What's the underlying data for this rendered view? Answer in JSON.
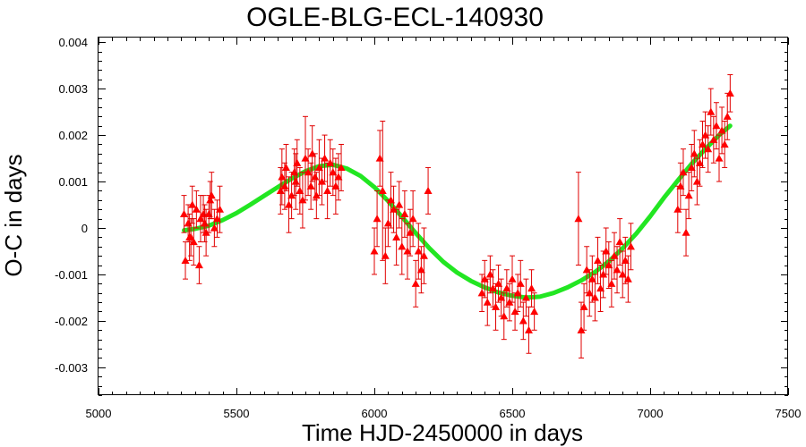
{
  "chart_data": {
    "type": "scatter",
    "title": "OGLE-BLG-ECL-140930",
    "xlabel": "Time HJD-2450000 in days",
    "ylabel": "O-C in days",
    "xlim": [
      5000,
      7500
    ],
    "ylim": [
      -0.0036,
      0.0041
    ],
    "x_ticks": [
      "5000",
      "5500",
      "6000",
      "6500",
      "7000",
      "7500"
    ],
    "y_ticks": [
      "-0.003",
      "-0.002",
      "-0.001",
      "0",
      "0.001",
      "0.002",
      "0.003",
      "0.004"
    ],
    "colors": {
      "points": "#ff0000",
      "error_bars": "#e00000",
      "fit": "#22e622"
    },
    "series": [
      {
        "style": "triangle-markers-with-error-bars",
        "x": [
          5310,
          5315,
          5325,
          5330,
          5335,
          5340,
          5345,
          5355,
          5365,
          5370,
          5380,
          5385,
          5390,
          5400,
          5405,
          5410,
          5420,
          5430,
          5440,
          5660,
          5665,
          5675,
          5680,
          5690,
          5700,
          5710,
          5715,
          5720,
          5730,
          5740,
          5750,
          5760,
          5770,
          5775,
          5785,
          5790,
          5800,
          5810,
          5820,
          5830,
          5840,
          5850,
          5860,
          5870,
          5880,
          6000,
          6010,
          6020,
          6030,
          6040,
          6050,
          6060,
          6070,
          6080,
          6090,
          6100,
          6110,
          6120,
          6130,
          6140,
          6150,
          6160,
          6170,
          6180,
          6195,
          6390,
          6400,
          6410,
          6420,
          6430,
          6440,
          6450,
          6460,
          6470,
          6480,
          6490,
          6500,
          6510,
          6520,
          6530,
          6540,
          6550,
          6560,
          6570,
          6580,
          6740,
          6750,
          6760,
          6770,
          6780,
          6790,
          6800,
          6810,
          6820,
          6830,
          6840,
          6850,
          6860,
          6870,
          6880,
          6890,
          6900,
          6910,
          6920,
          6930,
          7100,
          7110,
          7120,
          7130,
          7140,
          7150,
          7160,
          7170,
          7180,
          7190,
          7200,
          7210,
          7220,
          7230,
          7240,
          7250,
          7260,
          7270,
          7280,
          7290
        ],
        "y": [
          0.0003,
          -0.0007,
          0.0001,
          -0.0002,
          -0.0002,
          0.0005,
          -0.0003,
          0.0004,
          -0.0008,
          0.0002,
          0.0003,
          0.0001,
          -0.0001,
          0.0003,
          0.0006,
          0.0007,
          0.0,
          0.0002,
          0.0004,
          0.0008,
          0.0011,
          0.0009,
          0.0013,
          0.0005,
          0.0007,
          0.0012,
          0.001,
          0.0014,
          0.0008,
          0.0006,
          0.0015,
          0.0012,
          0.0009,
          0.0016,
          0.0011,
          0.0007,
          0.0013,
          0.001,
          0.0015,
          0.0008,
          0.0014,
          0.0012,
          0.0009,
          0.0011,
          0.0013,
          -0.0005,
          0.0002,
          0.0015,
          0.0008,
          -0.0006,
          0.0001,
          0.0006,
          0.0004,
          -0.0002,
          0.0005,
          -0.0004,
          0.0003,
          -0.0005,
          -0.0001,
          0.0002,
          -0.0012,
          -0.0005,
          -0.0009,
          -0.0006,
          0.0008,
          -0.0014,
          -0.0011,
          -0.0016,
          -0.001,
          -0.0013,
          -0.0017,
          -0.0012,
          -0.0015,
          -0.0019,
          -0.0013,
          -0.0016,
          -0.0011,
          -0.0018,
          -0.0014,
          -0.0012,
          -0.002,
          -0.0015,
          -0.0022,
          -0.0013,
          -0.0018,
          0.0002,
          -0.0022,
          -0.0017,
          -0.0009,
          -0.0014,
          -0.0011,
          -0.0015,
          -0.0007,
          -0.0013,
          -0.001,
          -0.0005,
          -0.0008,
          -0.0012,
          -0.0006,
          -0.0009,
          -0.0003,
          -0.001,
          -0.0007,
          -0.0011,
          -0.0004,
          0.0004,
          0.0009,
          0.0012,
          -0.0001,
          0.0007,
          0.0013,
          0.0016,
          0.001,
          0.0014,
          0.0018,
          0.002,
          0.0017,
          0.0025,
          0.0019,
          0.0022,
          0.0015,
          0.0021,
          0.0018,
          0.0024,
          0.0029
        ],
        "err": [
          0.0004,
          0.0004,
          0.0004,
          0.0005,
          0.0004,
          0.0004,
          0.0005,
          0.0004,
          0.0004,
          0.0005,
          0.0004,
          0.0004,
          0.0005,
          0.0004,
          0.0004,
          0.0005,
          0.0004,
          0.0004,
          0.0005,
          0.0005,
          0.0006,
          0.0005,
          0.0005,
          0.0006,
          0.0005,
          0.0005,
          0.0006,
          0.0005,
          0.0005,
          0.0006,
          0.0009,
          0.0005,
          0.0005,
          0.0006,
          0.0005,
          0.0005,
          0.0006,
          0.0005,
          0.0005,
          0.0006,
          0.0005,
          0.0005,
          0.0006,
          0.0005,
          0.0005,
          0.0005,
          0.0006,
          0.0006,
          0.0015,
          0.0006,
          0.0005,
          0.0006,
          0.0005,
          0.0006,
          0.0005,
          0.0006,
          0.0005,
          0.0006,
          0.0005,
          0.0006,
          0.0005,
          0.0006,
          0.0005,
          0.0006,
          0.0005,
          0.0004,
          0.0004,
          0.0005,
          0.0004,
          0.0004,
          0.0005,
          0.0004,
          0.0004,
          0.0005,
          0.0004,
          0.0004,
          0.0005,
          0.0004,
          0.0004,
          0.0005,
          0.0004,
          0.0004,
          0.0005,
          0.0004,
          0.0004,
          0.001,
          0.0006,
          0.0005,
          0.0005,
          0.0005,
          0.0005,
          0.0005,
          0.0005,
          0.0005,
          0.0005,
          0.0005,
          0.0005,
          0.0005,
          0.0005,
          0.0005,
          0.0005,
          0.0005,
          0.0005,
          0.0005,
          0.0005,
          0.0005,
          0.0005,
          0.0005,
          0.0005,
          0.0005,
          0.0005,
          0.0005,
          0.0005,
          0.0005,
          0.0005,
          0.0005,
          0.0005,
          0.0005,
          0.0005,
          0.0005,
          0.0005,
          0.0005,
          0.0005,
          0.0005,
          0.0004
        ]
      },
      {
        "style": "fit-curve",
        "x": [
          5310,
          5350,
          5400,
          5450,
          5500,
          5550,
          5600,
          5650,
          5700,
          5750,
          5800,
          5850,
          5900,
          5950,
          6000,
          6050,
          6100,
          6150,
          6200,
          6250,
          6300,
          6350,
          6400,
          6450,
          6500,
          6550,
          6600,
          6650,
          6700,
          6750,
          6800,
          6850,
          6900,
          6950,
          7000,
          7050,
          7100,
          7150,
          7200,
          7250,
          7290
        ],
        "y": [
          -5e-05,
          -2e-05,
          5e-05,
          0.00017,
          0.00032,
          0.0005,
          0.00069,
          0.00088,
          0.00106,
          0.00122,
          0.00133,
          0.00136,
          0.00128,
          0.00112,
          0.00088,
          0.00058,
          0.00024,
          -0.00011,
          -0.00044,
          -0.00073,
          -0.00096,
          -0.00114,
          -0.00128,
          -0.00139,
          -0.00146,
          -0.0015,
          -0.00148,
          -0.0014,
          -0.00128,
          -0.00113,
          -0.00095,
          -0.00072,
          -0.00044,
          -0.00012,
          0.00025,
          0.00065,
          0.00102,
          0.00138,
          0.0017,
          0.002,
          0.0022
        ]
      }
    ]
  }
}
